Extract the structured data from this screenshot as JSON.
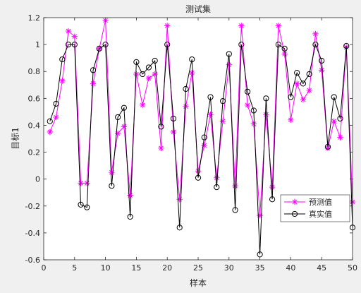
{
  "chart_data": {
    "type": "line",
    "title": "测试集",
    "xlabel": "样本",
    "ylabel": "目标1",
    "xlim": [
      0,
      50
    ],
    "ylim": [
      -0.6,
      1.2
    ],
    "xticks": [
      0,
      5,
      10,
      15,
      20,
      25,
      30,
      35,
      40,
      45,
      50
    ],
    "yticks": [
      -0.6,
      -0.4,
      -0.2,
      0,
      0.2,
      0.4,
      0.6,
      0.8,
      1.0,
      1.2
    ],
    "xtick_labels": [
      "0",
      "5",
      "10",
      "15",
      "20",
      "25",
      "30",
      "35",
      "40",
      "45",
      "50"
    ],
    "ytick_labels": [
      "-0.6",
      "-0.4",
      "-0.2",
      "0",
      "0.2",
      "0.4",
      "0.6",
      "0.8",
      "1",
      "1.2"
    ],
    "grid": false,
    "legend_position": "bottom-right",
    "x": [
      1,
      2,
      3,
      4,
      5,
      6,
      7,
      8,
      9,
      10,
      11,
      12,
      13,
      14,
      15,
      16,
      17,
      18,
      19,
      20,
      21,
      22,
      23,
      24,
      25,
      26,
      27,
      28,
      29,
      30,
      31,
      32,
      33,
      34,
      35,
      36,
      37,
      38,
      39,
      40,
      41,
      42,
      43,
      44,
      45,
      46,
      47,
      48,
      49,
      50
    ],
    "series": [
      {
        "name": "预测值",
        "color": "#ff00ff",
        "marker": "asterisk",
        "values": [
          0.35,
          0.46,
          0.73,
          1.1,
          1.06,
          -0.03,
          -0.03,
          0.71,
          0.97,
          1.18,
          0.05,
          0.34,
          0.39,
          -0.12,
          0.78,
          0.55,
          0.75,
          0.78,
          0.23,
          1.14,
          0.35,
          -0.15,
          0.54,
          0.79,
          0.06,
          0.25,
          0.48,
          0.01,
          0.43,
          0.85,
          -0.05,
          1.14,
          0.55,
          0.41,
          -0.27,
          0.48,
          -0.06,
          1.14,
          0.93,
          0.44,
          0.71,
          0.59,
          0.66,
          1.08,
          0.81,
          0.23,
          0.43,
          0.31,
          0.98,
          -0.17
        ]
      },
      {
        "name": "真实值",
        "color": "#000000",
        "marker": "circle",
        "values": [
          0.43,
          0.56,
          0.89,
          1.0,
          1.0,
          -0.19,
          -0.21,
          0.81,
          0.97,
          1.0,
          -0.05,
          0.46,
          0.53,
          -0.28,
          0.87,
          0.78,
          0.83,
          0.88,
          0.39,
          1.0,
          0.45,
          -0.36,
          0.67,
          0.89,
          0.01,
          0.31,
          0.61,
          -0.06,
          0.58,
          0.93,
          -0.23,
          1.0,
          0.65,
          0.51,
          -0.56,
          0.6,
          -0.15,
          1.0,
          0.97,
          0.61,
          0.79,
          0.71,
          0.78,
          1.0,
          0.88,
          0.24,
          0.61,
          0.45,
          0.99,
          -0.36
        ]
      }
    ]
  }
}
